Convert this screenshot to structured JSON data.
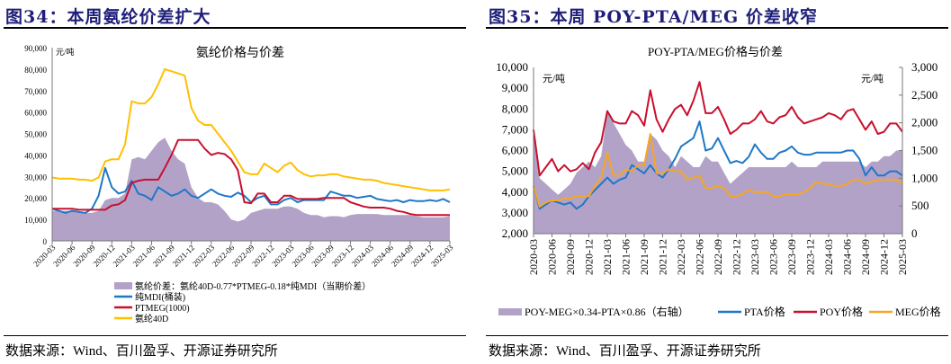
{
  "left_panel": {
    "figure_title": "图34：本周氨纶价差扩大",
    "source": "数据来源：Wind、百川盈孚、开源证券研究所"
  },
  "right_panel": {
    "figure_title": "图35：本周 POY-PTA/MEG 价差收窄",
    "source": "数据来源：Wind、百川盈孚、开源证券研究所"
  },
  "colors": {
    "title": "#1f1f7a",
    "spread": "#b3a2c8",
    "blue": "#1f77c8",
    "red": "#c8102e",
    "yellow": "#ffc000",
    "orange": "#f5a623"
  },
  "chart_data": [
    {
      "type": "line",
      "title": "氨纶价格与价差",
      "unit": "元/吨",
      "ylim": [
        0,
        90000
      ],
      "yticks": [
        "0",
        "10,000",
        "20,000",
        "30,000",
        "40,000",
        "50,000",
        "60,000",
        "70,000",
        "80,000",
        "90,000"
      ],
      "xtick_labels": [
        "2020-03",
        "2020-06",
        "2020-09",
        "2020-12",
        "2021-03",
        "2021-06",
        "2021-09",
        "2021-12",
        "2022-03",
        "2022-06",
        "2022-09",
        "2022-12",
        "2023-03",
        "2023-06",
        "2023-09",
        "2023-12",
        "2024-03",
        "2024-06",
        "2024-09",
        "2024-12",
        "2025-03"
      ],
      "x_start": "2020-03",
      "x_step": "month",
      "series": [
        {
          "name": "氨纶价差：氨纶40D-0.77*PTMEG-0.18*纯MDI（当期价差）",
          "kind": "area",
          "color": "#b3a2c8",
          "values": [
            14000,
            14000,
            14000,
            14000,
            13500,
            13000,
            13000,
            14000,
            19000,
            20000,
            20000,
            22000,
            38000,
            39000,
            38000,
            42000,
            46000,
            48000,
            42000,
            38000,
            36000,
            25000,
            20000,
            18000,
            18000,
            17000,
            14000,
            10000,
            9000,
            10000,
            13000,
            14000,
            15000,
            15000,
            15000,
            16000,
            16000,
            15000,
            13000,
            12000,
            12000,
            11000,
            11500,
            11500,
            11000,
            12000,
            12500,
            12500,
            12500,
            12500,
            12000,
            12000,
            12000,
            12000,
            12000,
            11500,
            11000,
            11000,
            11000,
            11000,
            11500
          ]
        },
        {
          "name": "纯MDI(桶装)",
          "kind": "line",
          "color": "#1f77c8",
          "values": [
            15000,
            14000,
            13000,
            14000,
            13500,
            13000,
            15000,
            21000,
            34000,
            25000,
            22000,
            23000,
            28000,
            22000,
            21000,
            19000,
            25000,
            23000,
            21000,
            22000,
            24000,
            21000,
            20000,
            22000,
            24000,
            22000,
            21000,
            20500,
            22500,
            21000,
            18000,
            20000,
            21000,
            17000,
            17000,
            19000,
            20000,
            18000,
            19000,
            19000,
            19000,
            19000,
            23000,
            22000,
            21000,
            21000,
            20000,
            20500,
            21000,
            19500,
            19000,
            18500,
            19000,
            18000,
            19000,
            18500,
            18500,
            19000,
            18500,
            19500,
            18000
          ]
        },
        {
          "name": "PTMEG(1000)",
          "kind": "line",
          "color": "#c8102e",
          "values": [
            15000,
            15000,
            15000,
            15000,
            14500,
            14500,
            14500,
            14500,
            14500,
            16500,
            17000,
            19000,
            27000,
            28000,
            28500,
            28500,
            28500,
            34000,
            40000,
            47000,
            47000,
            47000,
            47000,
            43000,
            40000,
            41000,
            40500,
            38000,
            33000,
            18000,
            17500,
            22000,
            22000,
            18000,
            18000,
            21000,
            21000,
            19500,
            19500,
            19500,
            19500,
            20000,
            20000,
            20000,
            20000,
            18000,
            17000,
            16000,
            15500,
            15500,
            15500,
            15000,
            14000,
            13500,
            12500,
            12000,
            12000,
            12000,
            12000,
            12000,
            12000
          ]
        },
        {
          "name": "氨纶40D",
          "kind": "line",
          "color": "#ffc000",
          "values": [
            29500,
            29000,
            29000,
            29000,
            28500,
            28500,
            28000,
            29500,
            37000,
            38000,
            38000,
            45000,
            65000,
            64000,
            64000,
            67000,
            73000,
            80000,
            79000,
            78000,
            77000,
            62000,
            56000,
            54000,
            54000,
            50000,
            46000,
            42000,
            37000,
            32000,
            31000,
            31000,
            36000,
            34000,
            32000,
            35000,
            36500,
            33000,
            31000,
            30000,
            30500,
            30500,
            31000,
            31000,
            30000,
            29500,
            29000,
            28500,
            28500,
            28000,
            27000,
            26500,
            26000,
            25500,
            25000,
            24500,
            24000,
            23500,
            23500,
            23500,
            24000
          ]
        }
      ],
      "legend_position": "bottom"
    },
    {
      "type": "line",
      "title": "POY-PTA/MEG价格与价差",
      "unit_left": "元/吨",
      "unit_right": "元/吨",
      "ylim": [
        2000,
        10000
      ],
      "y2lim": [
        0,
        3000
      ],
      "yticks": [
        "2,000",
        "3,000",
        "4,000",
        "5,000",
        "6,000",
        "7,000",
        "8,000",
        "9,000",
        "10,000"
      ],
      "y2ticks": [
        "0",
        "500",
        "1,000",
        "1,500",
        "2,000",
        "2,500",
        "3,000"
      ],
      "xtick_labels": [
        "2020-03",
        "2020-06",
        "2020-09",
        "2020-12",
        "2021-03",
        "2021-06",
        "2021-09",
        "2021-12",
        "2022-03",
        "2022-06",
        "2022-09",
        "2022-12",
        "2023-03",
        "2023-06",
        "2023-09",
        "2023-12",
        "2024-03",
        "2024-06",
        "2024-09",
        "2024-12",
        "2025-03"
      ],
      "x_start": "2020-03",
      "x_step": "month",
      "series": [
        {
          "name": "POY-MEG×0.34-PTA×0.86（右轴）",
          "kind": "area",
          "axis": "right",
          "color": "#b3a2c8",
          "values": [
            1800,
            1000,
            900,
            800,
            700,
            800,
            900,
            1100,
            1200,
            1300,
            1200,
            1400,
            2200,
            2000,
            1800,
            1600,
            1500,
            1300,
            1300,
            1800,
            1700,
            1500,
            1400,
            1200,
            1400,
            1300,
            1200,
            1200,
            1400,
            1300,
            1300,
            1100,
            900,
            1000,
            1100,
            1200,
            1200,
            1200,
            1200,
            1200,
            1200,
            1200,
            1300,
            1200,
            1200,
            1200,
            1200,
            1300,
            1300,
            1300,
            1300,
            1300,
            1300,
            1300,
            1200,
            1300,
            1300,
            1400,
            1400,
            1500,
            1500
          ]
        },
        {
          "name": "PTA价格",
          "kind": "line",
          "axis": "left",
          "color": "#1f77c8",
          "values": [
            4300,
            3200,
            3400,
            3600,
            3500,
            3400,
            3500,
            3200,
            3400,
            3800,
            4100,
            4400,
            4700,
            4400,
            4600,
            4700,
            5300,
            5100,
            4900,
            5300,
            4900,
            4700,
            5100,
            5600,
            6200,
            6400,
            6600,
            7400,
            6000,
            6100,
            6600,
            6000,
            5400,
            5500,
            5400,
            5700,
            6300,
            5900,
            5600,
            5600,
            5900,
            6000,
            6200,
            5900,
            5800,
            5800,
            5900,
            5900,
            5900,
            5900,
            5900,
            6000,
            6000,
            5600,
            4800,
            5200,
            4800,
            4800,
            5000,
            5000,
            4800
          ]
        },
        {
          "name": "POY价格",
          "kind": "line",
          "axis": "left",
          "color": "#c8102e",
          "values": [
            7000,
            4800,
            5200,
            5600,
            5000,
            5300,
            5000,
            5100,
            5400,
            5100,
            5900,
            6400,
            7900,
            7400,
            7300,
            7300,
            7900,
            7700,
            7200,
            8900,
            7500,
            6900,
            7500,
            8000,
            8200,
            7700,
            8400,
            9300,
            7800,
            7800,
            8100,
            7500,
            6800,
            7000,
            7300,
            7300,
            7500,
            7900,
            7400,
            7300,
            7600,
            7700,
            8100,
            7600,
            7300,
            7400,
            7500,
            7600,
            7800,
            7700,
            7500,
            7900,
            8000,
            7500,
            7000,
            7400,
            6800,
            6900,
            7300,
            7300,
            6900
          ]
        },
        {
          "name": "MEG价格",
          "kind": "line",
          "axis": "left",
          "color": "#f5a623",
          "values": [
            4300,
            3300,
            3500,
            3600,
            3600,
            3700,
            3700,
            3800,
            3800,
            3800,
            4300,
            4700,
            5900,
            4800,
            4800,
            5100,
            5000,
            5300,
            5300,
            6800,
            4900,
            4900,
            5100,
            5000,
            5000,
            4600,
            4700,
            4800,
            4200,
            4200,
            4300,
            4200,
            3800,
            3800,
            3900,
            4100,
            4000,
            4000,
            4000,
            3800,
            3800,
            3900,
            3900,
            3900,
            4000,
            4200,
            4500,
            4400,
            4400,
            4300,
            4300,
            4400,
            4600,
            4600,
            4400,
            4500,
            4600,
            4600,
            4600,
            4600,
            4400
          ]
        }
      ],
      "legend_position": "bottom"
    }
  ]
}
